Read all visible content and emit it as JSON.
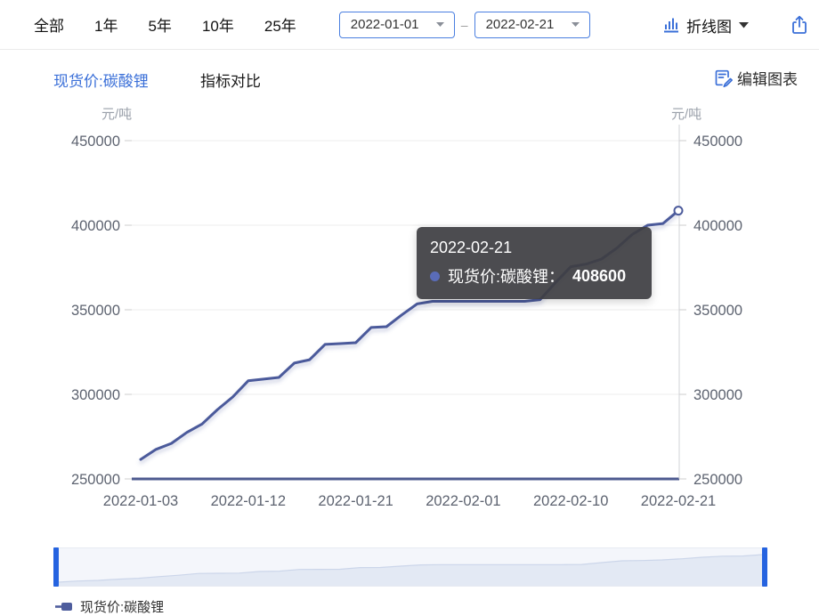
{
  "toolbar": {
    "ranges": [
      "全部",
      "1年",
      "5年",
      "10年",
      "25年"
    ],
    "date_from": "2022-01-01",
    "date_to": "2022-02-21",
    "range_separator": "–",
    "chart_type_label": "折线图"
  },
  "subheader": {
    "series_link": "现货价:碳酸锂",
    "compare_label": "指标对比",
    "edit_label": "编辑图表"
  },
  "units": {
    "left": "元/吨",
    "right": "元/吨"
  },
  "tooltip": {
    "date": "2022-02-21",
    "series_label": "现货价:碳酸锂：",
    "value": "408600"
  },
  "legend": {
    "label": "现货价:碳酸锂"
  },
  "chart_data": {
    "type": "line",
    "title": "现货价:碳酸锂",
    "y_unit": "元/吨",
    "grid": true,
    "legend_position": "bottom",
    "ylim": [
      250000,
      450000
    ],
    "y_ticks": [
      250000,
      300000,
      350000,
      400000,
      450000
    ],
    "x": [
      "2022-01-03",
      "2022-01-04",
      "2022-01-05",
      "2022-01-06",
      "2022-01-07",
      "2022-01-10",
      "2022-01-11",
      "2022-01-12",
      "2022-01-13",
      "2022-01-14",
      "2022-01-17",
      "2022-01-18",
      "2022-01-19",
      "2022-01-20",
      "2022-01-21",
      "2022-01-24",
      "2022-01-25",
      "2022-01-26",
      "2022-01-27",
      "2022-01-28",
      "2022-01-31",
      "2022-02-01",
      "2022-02-02",
      "2022-02-03",
      "2022-02-04",
      "2022-02-07",
      "2022-02-08",
      "2022-02-09",
      "2022-02-10",
      "2022-02-11",
      "2022-02-14",
      "2022-02-15",
      "2022-02-16",
      "2022-02-17",
      "2022-02-18",
      "2022-02-21"
    ],
    "x_tick_labels": [
      "2022-01-03",
      "2022-01-12",
      "2022-01-21",
      "2022-02-01",
      "2022-02-10",
      "2022-02-21"
    ],
    "series": [
      {
        "name": "现货价:碳酸锂",
        "color": "#4b5a9b",
        "values": [
          261500,
          267500,
          271000,
          277500,
          282500,
          291000,
          298500,
          308000,
          309000,
          310000,
          318500,
          320500,
          329500,
          330000,
          330500,
          339500,
          340000,
          347000,
          353500,
          355000,
          355000,
          355000,
          355000,
          355000,
          355000,
          355000,
          356000,
          366000,
          375500,
          377000,
          380000,
          386500,
          394500,
          400000,
          401000,
          408600
        ]
      }
    ],
    "hovered_point": {
      "x": "2022-02-21",
      "value": 408600
    }
  },
  "colors": {
    "accent_blue": "#3a6fd8",
    "line": "#4b5a9b",
    "axis_line": "#4d5a8f",
    "grid": "#ececec",
    "crosshair": "#d2d3d7",
    "nav_fill": "#e3e9f4",
    "nav_handle": "#2563e0",
    "tooltip_bg": "rgba(62,62,67,0.93)"
  }
}
